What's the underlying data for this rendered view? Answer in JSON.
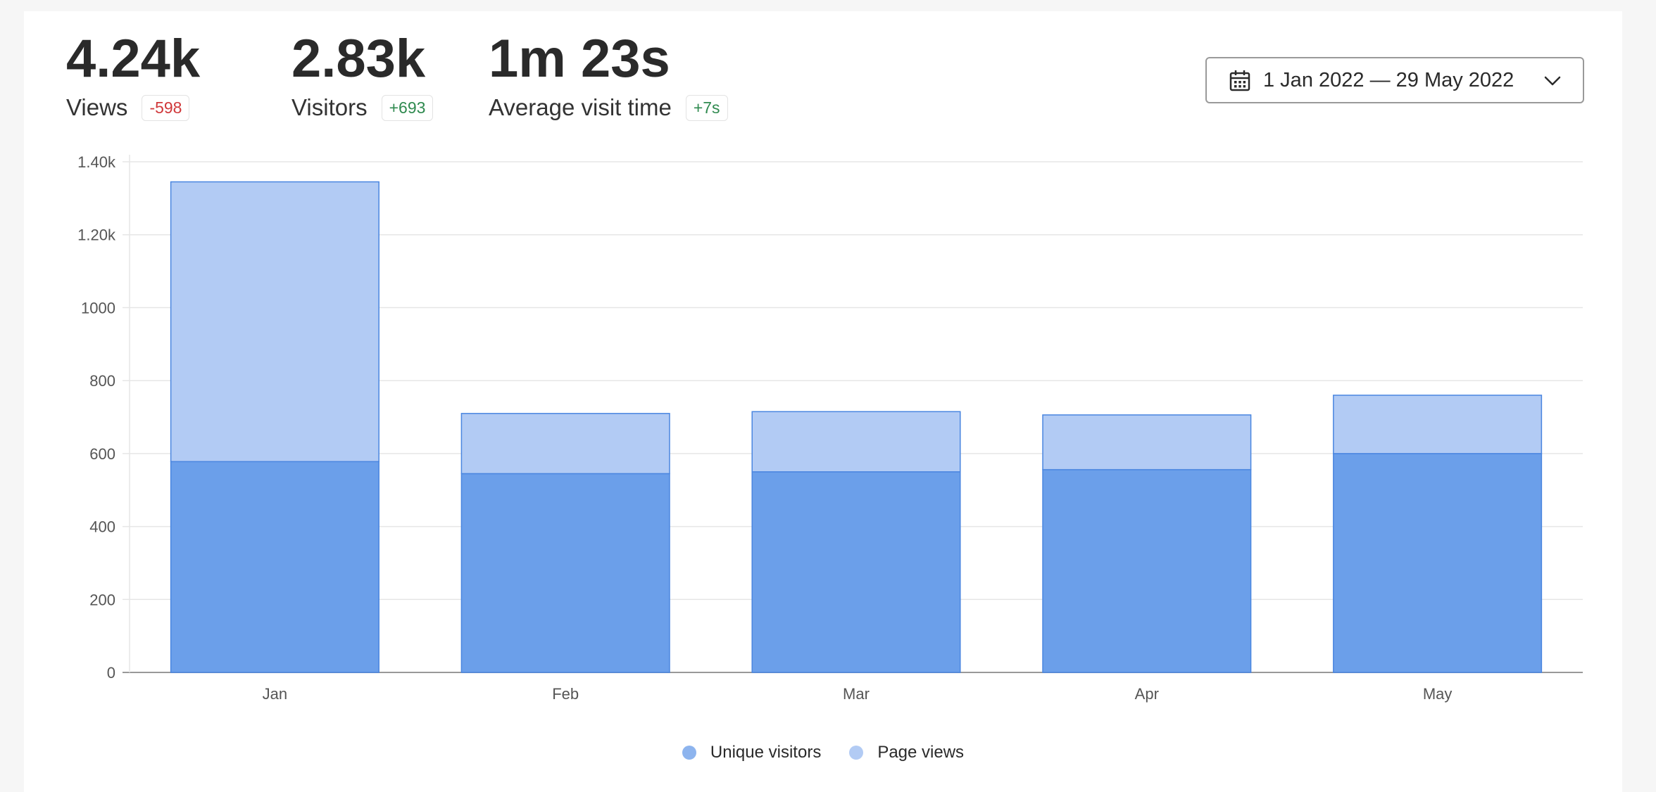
{
  "metrics": [
    {
      "value": "4.24k",
      "label": "Views",
      "change": "-598",
      "trend": "negative"
    },
    {
      "value": "2.83k",
      "label": "Visitors",
      "change": "+693",
      "trend": "positive"
    },
    {
      "value": "1m 23s",
      "label": "Average visit time",
      "change": "+7s",
      "trend": "positive"
    }
  ],
  "date_range": {
    "label": "1 Jan 2022 — 29 May 2022",
    "icon": "calendar-icon",
    "dropdown_icon": "chevron-down-icon"
  },
  "colors": {
    "unique_visitors": "#6b9fea",
    "page_views": "#b2cbf4",
    "bar_border": "#4a86e0",
    "negative": "#d0383a",
    "positive": "#2f8a4f"
  },
  "chart_data": {
    "type": "bar",
    "stacked": true,
    "categories": [
      "Jan",
      "Feb",
      "Mar",
      "Apr",
      "May"
    ],
    "series": [
      {
        "name": "Unique visitors",
        "values": [
          578,
          545,
          550,
          556,
          600
        ]
      },
      {
        "name": "Page views",
        "values": [
          767,
          165,
          165,
          150,
          160
        ]
      }
    ],
    "y_ticks": [
      "0",
      "200",
      "400",
      "600",
      "800",
      "1000",
      "1.20k",
      "1.40k"
    ],
    "ylim": [
      0,
      1400
    ],
    "grid": true,
    "legend_position": "bottom-center"
  }
}
